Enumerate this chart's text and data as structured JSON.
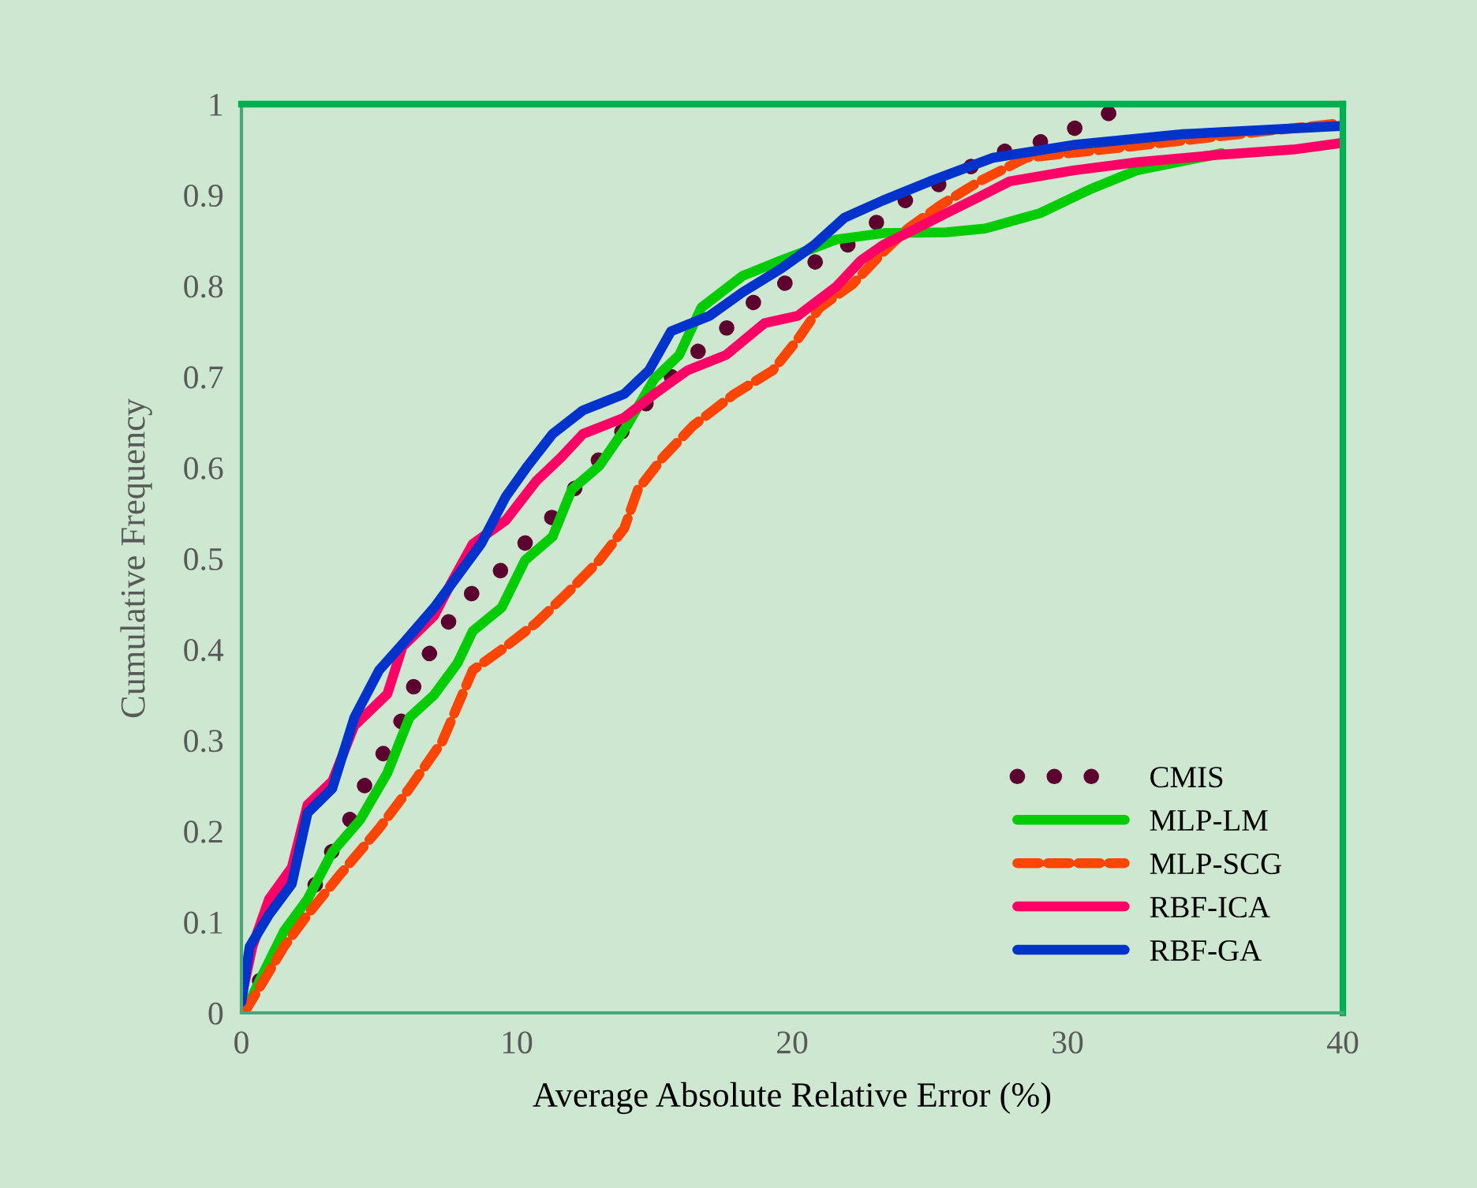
{
  "chart_data": {
    "type": "line",
    "xlabel": "Average Absolute Relative Error (%)",
    "ylabel": "Cumulative Frequency",
    "xlim": [
      0,
      40
    ],
    "xticks": [
      0,
      10,
      20,
      30,
      40
    ],
    "ylim": [
      0,
      1
    ],
    "yticks": [
      0,
      0.1,
      0.2,
      0.3,
      0.4,
      0.5,
      0.6,
      0.7,
      0.8,
      0.9,
      1
    ],
    "grid": false,
    "legend": "bottom right",
    "marker": "none",
    "series": [
      {
        "name": "CMIS",
        "color": "#5c0030",
        "line_style": "dotted",
        "x": [
          0,
          0.8,
          1.66,
          2.4,
          3.1,
          3.9,
          4.47,
          5.16,
          5.96,
          6.4,
          7.2,
          8.0,
          9.3,
          10.3,
          11.4,
          12.3,
          13.3,
          14.3,
          15.4,
          16.2,
          17.4,
          18.5,
          19.9,
          21.1,
          22.5,
          23.6,
          25.0,
          26.4,
          27.7,
          29.2,
          30.7,
          32.1
        ],
        "values": [
          0,
          0.043,
          0.085,
          0.123,
          0.168,
          0.21,
          0.25,
          0.286,
          0.33,
          0.373,
          0.415,
          0.453,
          0.483,
          0.517,
          0.549,
          0.585,
          0.62,
          0.658,
          0.693,
          0.719,
          0.747,
          0.78,
          0.806,
          0.832,
          0.852,
          0.887,
          0.906,
          0.93,
          0.948,
          0.96,
          0.979,
          0.998
        ]
      },
      {
        "name": "MLP-LM",
        "color": "#00cc00",
        "line_style": "solid",
        "x": [
          0.1,
          0.7,
          1.55,
          2.4,
          3.3,
          4.3,
          5.3,
          6.1,
          7.0,
          7.85,
          8.4,
          9.45,
          10.3,
          11.3,
          12.0,
          13.0,
          14.0,
          15.0,
          15.9,
          16.7,
          18.2,
          19.6,
          21.6,
          23.3,
          25.6,
          27.0,
          29.0,
          30.8,
          32.5,
          34.8,
          35.6
        ],
        "values": [
          0,
          0.038,
          0.09,
          0.125,
          0.177,
          0.212,
          0.264,
          0.325,
          0.35,
          0.385,
          0.42,
          0.446,
          0.498,
          0.524,
          0.576,
          0.602,
          0.646,
          0.698,
          0.724,
          0.776,
          0.811,
          0.828,
          0.851,
          0.858,
          0.859,
          0.863,
          0.88,
          0.906,
          0.927,
          0.941,
          0.946
        ]
      },
      {
        "name": "MLP-SCG",
        "color": "#ff4500",
        "line_style": "dashed",
        "x": [
          0.1,
          0.7,
          1.55,
          2.4,
          3.55,
          5.0,
          6.1,
          7.3,
          8.4,
          9.6,
          10.7,
          11.9,
          13.0,
          13.9,
          14.4,
          15.3,
          16.4,
          17.9,
          19.3,
          20.2,
          21.0,
          22.2,
          23.3,
          24.2,
          25.4,
          26.8,
          28.5,
          31.3,
          34.8,
          37.1,
          39.9
        ],
        "values": [
          0,
          0.03,
          0.073,
          0.108,
          0.151,
          0.203,
          0.247,
          0.299,
          0.377,
          0.403,
          0.429,
          0.464,
          0.498,
          0.533,
          0.576,
          0.611,
          0.646,
          0.681,
          0.707,
          0.741,
          0.776,
          0.802,
          0.837,
          0.863,
          0.889,
          0.915,
          0.941,
          0.95,
          0.962,
          0.97,
          0.979
        ]
      },
      {
        "name": "RBF-ICA",
        "color": "#ff0066",
        "line_style": "solid",
        "x": [
          0,
          0.4,
          1.0,
          1.83,
          2.4,
          3.3,
          4.1,
          5.3,
          5.85,
          7.0,
          7.6,
          8.4,
          9.6,
          10.7,
          11.6,
          12.4,
          13.9,
          15.0,
          16.2,
          17.6,
          19.0,
          20.2,
          21.6,
          22.5,
          23.3,
          24.5,
          25.6,
          26.8,
          27.9,
          30.2,
          32.5,
          35.4,
          38.2,
          39.9
        ],
        "values": [
          0.017,
          0.073,
          0.125,
          0.16,
          0.229,
          0.255,
          0.316,
          0.351,
          0.403,
          0.437,
          0.472,
          0.516,
          0.542,
          0.585,
          0.611,
          0.637,
          0.655,
          0.681,
          0.707,
          0.724,
          0.759,
          0.767,
          0.799,
          0.828,
          0.845,
          0.863,
          0.88,
          0.898,
          0.915,
          0.927,
          0.936,
          0.944,
          0.95,
          0.957
        ]
      },
      {
        "name": "RBF-GA",
        "color": "#0033cc",
        "line_style": "solid",
        "x": [
          0,
          0.3,
          1.0,
          1.83,
          2.4,
          3.3,
          4.1,
          5.0,
          6.0,
          7.0,
          7.85,
          8.7,
          9.6,
          10.4,
          11.3,
          12.4,
          13.9,
          14.8,
          15.6,
          17.0,
          18.2,
          19.6,
          20.8,
          21.9,
          23.3,
          25.0,
          27.3,
          30.2,
          34.2,
          39.9
        ],
        "values": [
          0.012,
          0.073,
          0.108,
          0.142,
          0.22,
          0.247,
          0.325,
          0.377,
          0.411,
          0.446,
          0.481,
          0.516,
          0.568,
          0.602,
          0.637,
          0.663,
          0.681,
          0.707,
          0.75,
          0.767,
          0.793,
          0.819,
          0.845,
          0.875,
          0.894,
          0.915,
          0.941,
          0.955,
          0.967,
          0.976
        ]
      }
    ]
  }
}
